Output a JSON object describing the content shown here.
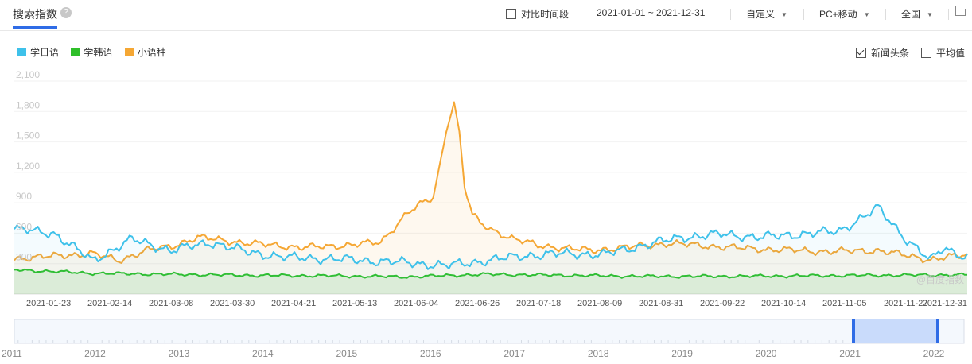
{
  "header": {
    "title": "搜索指数",
    "help_icon": "question-icon",
    "compare_label": "对比时间段",
    "date_range": "2021-01-01 ~ 2021-12-31",
    "custom_label": "自定义",
    "device_label": "PC+移动",
    "region_label": "全国",
    "share_icon": "external-link-icon"
  },
  "options": {
    "news_label": "新闻头条",
    "news_checked": true,
    "avg_label": "平均值",
    "avg_checked": false
  },
  "watermark": "@百度指数",
  "colors": {
    "series1": "#3ec1ea",
    "series2": "#2fbf2a",
    "series3": "#f5a734",
    "accent": "#2f6ce6",
    "grid": "#f2f2f2"
  },
  "chart_data": {
    "type": "line",
    "x_ticks": [
      "2021-01-23",
      "2021-02-14",
      "2021-03-08",
      "2021-03-30",
      "2021-04-21",
      "2021-05-13",
      "2021-06-04",
      "2021-06-26",
      "2021-07-18",
      "2021-08-09",
      "2021-08-31",
      "2021-09-22",
      "2021-10-14",
      "2021-11-05",
      "2021-11-27",
      "2021-12-31"
    ],
    "y_ticks": [
      300,
      600,
      900,
      1200,
      1500,
      1800,
      2100
    ],
    "y_tick_labels": [
      "300",
      "600",
      "900",
      "1,200",
      "1,500",
      "1,800",
      "2,100"
    ],
    "ylim": [
      0,
      2100
    ],
    "x_range_days": [
      0,
      364
    ],
    "grid": true,
    "legend_position": "top-left",
    "series": [
      {
        "name": "学日语",
        "days": [
          0,
          15,
          30,
          45,
          60,
          75,
          90,
          105,
          120,
          135,
          150,
          165,
          180,
          195,
          210,
          225,
          240,
          255,
          270,
          285,
          300,
          315,
          330,
          340,
          350,
          355,
          364
        ],
        "values": [
          640,
          600,
          330,
          540,
          430,
          510,
          410,
          360,
          350,
          330,
          310,
          280,
          330,
          380,
          400,
          390,
          480,
          560,
          590,
          560,
          590,
          620,
          850,
          560,
          330,
          460,
          360
        ]
      },
      {
        "name": "学韩语",
        "days": [
          0,
          30,
          60,
          90,
          120,
          150,
          180,
          210,
          240,
          270,
          300,
          330,
          364
        ],
        "values": [
          240,
          205,
          195,
          185,
          180,
          170,
          195,
          185,
          175,
          175,
          180,
          185,
          190
        ]
      },
      {
        "name": "小语种",
        "days": [
          0,
          30,
          40,
          50,
          60,
          70,
          90,
          110,
          120,
          130,
          140,
          150,
          155,
          160,
          165,
          168,
          170,
          172,
          175,
          178,
          182,
          190,
          200,
          220,
          250,
          280,
          310,
          330,
          350,
          364
        ],
        "values": [
          350,
          400,
          330,
          430,
          470,
          560,
          500,
          460,
          470,
          490,
          510,
          800,
          880,
          950,
          1600,
          1890,
          1600,
          1050,
          780,
          700,
          640,
          550,
          480,
          430,
          500,
          450,
          420,
          430,
          340,
          390
        ]
      }
    ],
    "navigator": {
      "year_labels": [
        "2011",
        "2012",
        "2013",
        "2014",
        "2015",
        "2016",
        "2017",
        "2018",
        "2019",
        "2020",
        "2021",
        "2022"
      ],
      "selected_range": [
        "2021-01-01",
        "2021-12-31"
      ]
    }
  }
}
